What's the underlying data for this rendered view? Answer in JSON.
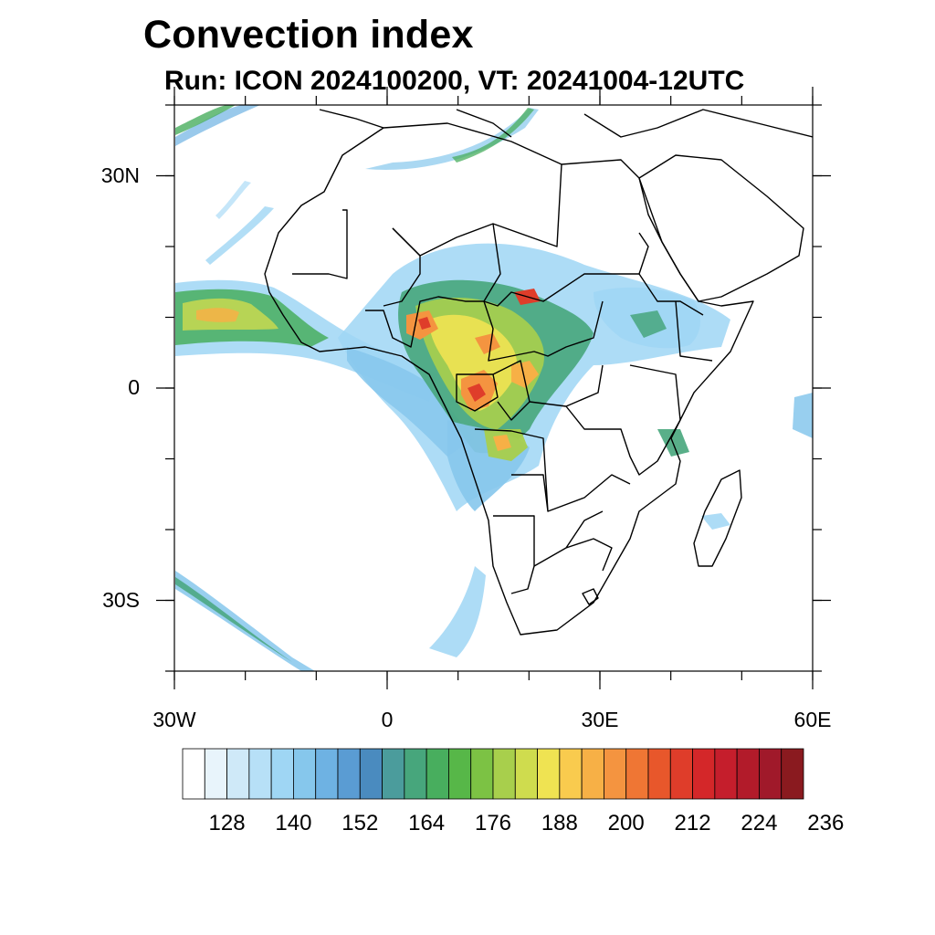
{
  "title": "Convection index",
  "subtitle": "Run: ICON 2024100200,  VT: 20241004-12UTC",
  "map": {
    "lon_range": [
      -30,
      60
    ],
    "lat_range": [
      -40,
      40
    ],
    "lat_ticks": [
      {
        "value": 30,
        "label": "30N"
      },
      {
        "value": 0,
        "label": "0"
      },
      {
        "value": -30,
        "label": "30S"
      }
    ],
    "lon_ticks": [
      {
        "value": -30,
        "label": "30W"
      },
      {
        "value": 0,
        "label": "0"
      },
      {
        "value": 30,
        "label": "30E"
      },
      {
        "value": 60,
        "label": "60E"
      }
    ]
  },
  "colorbar": {
    "colors": [
      "#ffffff",
      "#e8f4fb",
      "#cfe9f8",
      "#b7e0f7",
      "#9fd6f4",
      "#86c7ec",
      "#6eb2e3",
      "#5a9cd3",
      "#4a8bbf",
      "#4b9c9c",
      "#47a67c",
      "#48ae5e",
      "#57b748",
      "#7cc244",
      "#a8cf4c",
      "#cfdc4e",
      "#efe352",
      "#f9cb4e",
      "#f7b046",
      "#f49440",
      "#ef7634",
      "#e8572b",
      "#df3d2a",
      "#d42729",
      "#c51e2c",
      "#b21b2a",
      "#a0192a",
      "#8a1a1f"
    ],
    "labels": [
      "128",
      "140",
      "152",
      "164",
      "176",
      "188",
      "200",
      "212",
      "224",
      "236"
    ]
  }
}
